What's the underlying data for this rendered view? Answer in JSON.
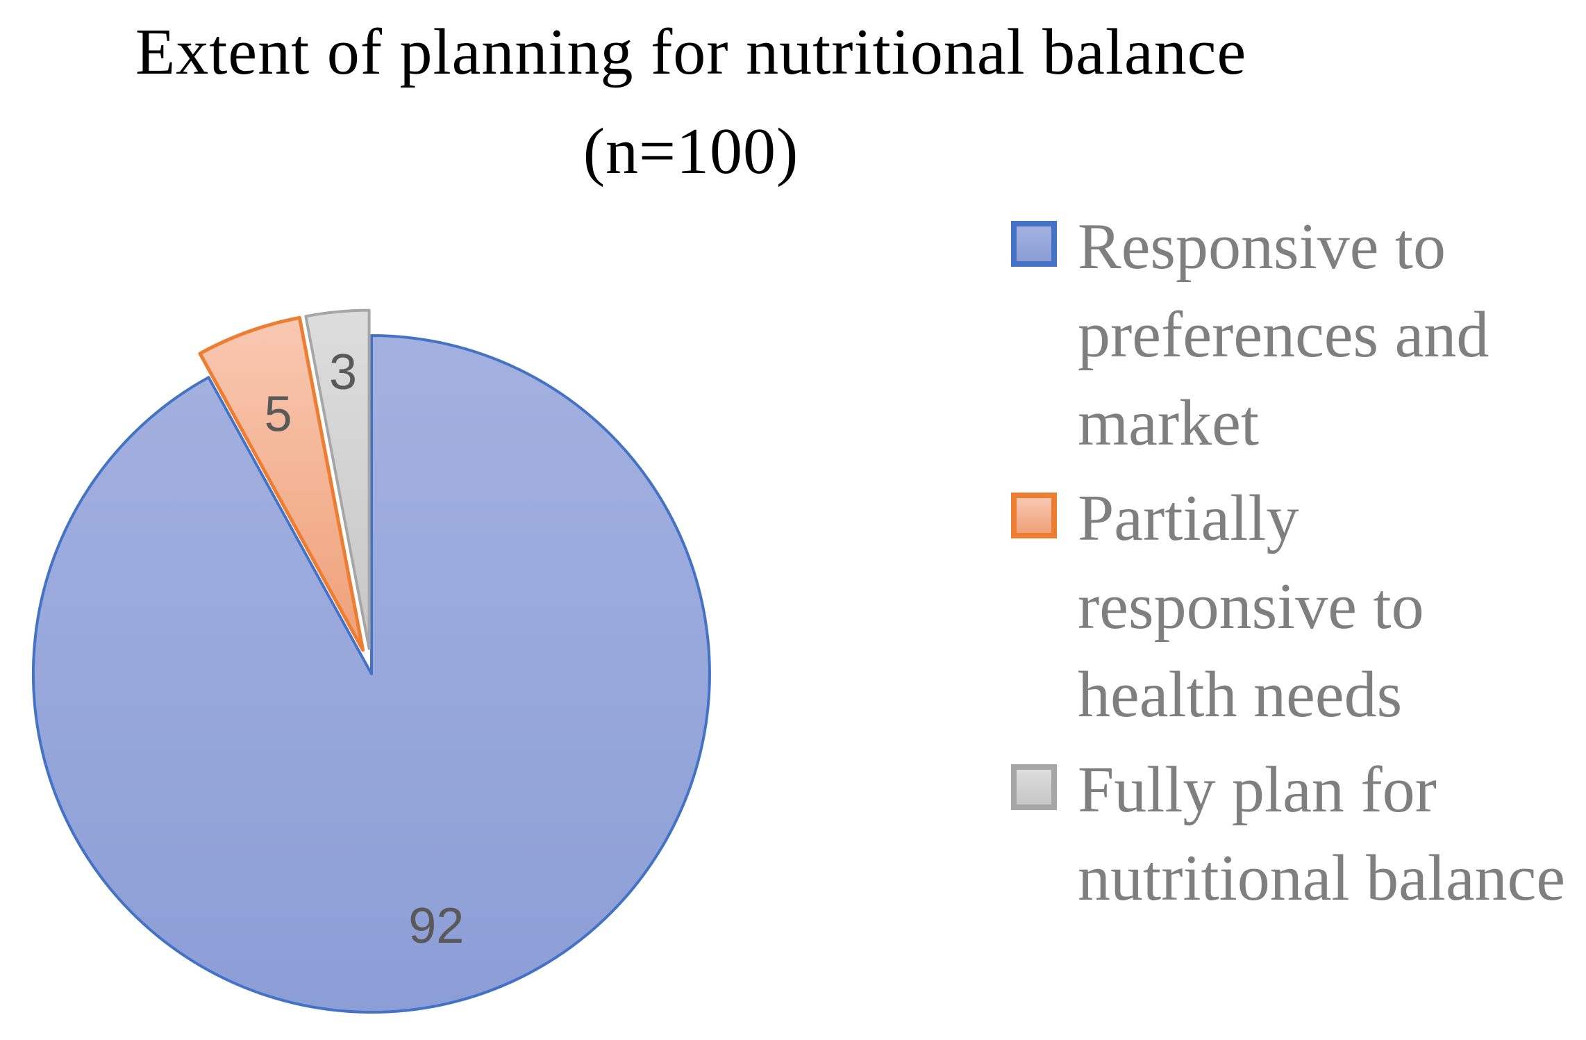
{
  "title": {
    "line1": "Extent of planning for nutritional balance",
    "line2": "(n=100)"
  },
  "chart_data": {
    "type": "pie",
    "title": "Extent of planning for nutritional balance (n=100)",
    "sample_size_label": "(n=100)",
    "total": 100,
    "legend_position": "right",
    "start_angle_deg": 0,
    "direction": "clockwise",
    "data_label_color": "#595959",
    "legend_text_color": "#7f7f7f",
    "background_color": "#ffffff",
    "slices": [
      {
        "label": "Responsive to preferences and market",
        "value": 92,
        "fill_light": "#a3b1e0",
        "fill_dark": "#8c9ed6",
        "border": "#4472c4",
        "border_width": 4,
        "explode": 0,
        "label_r": 0.77
      },
      {
        "label": "Partially responsive to health needs",
        "value": 5,
        "fill_light": "#f8c8b1",
        "fill_dark": "#efa078",
        "border": "#ed7d31",
        "border_width": 5,
        "explode": 0.075,
        "label_r": 0.74
      },
      {
        "label": "Fully plan for nutritional balance",
        "value": 3,
        "fill_light": "#dddddd",
        "fill_dark": "#c7c7c7",
        "border": "#a6a6a6",
        "border_width": 4,
        "explode": 0.075,
        "label_r": 0.82
      }
    ]
  }
}
